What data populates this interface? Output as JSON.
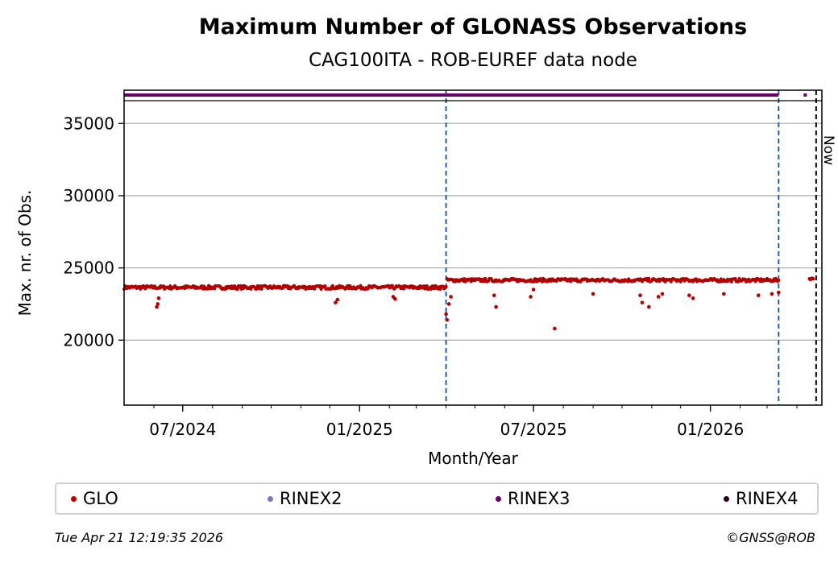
{
  "chart_data": {
    "type": "scatter",
    "title": "Maximum Number of GLONASS Observations",
    "subtitle": "CAG100ITA - ROB-EUREF data node",
    "xlabel": "Month/Year",
    "ylabel": "Max. nr. of Obs.",
    "xlim": [
      "2024-05-01",
      "2026-04-27"
    ],
    "ylim": [
      15500,
      37300
    ],
    "x_ticks": [
      "2024-07-01",
      "2025-01-01",
      "2025-07-01",
      "2026-01-01"
    ],
    "x_tick_labels": [
      "07/2024",
      "01/2025",
      "07/2025",
      "01/2026"
    ],
    "y_ticks": [
      20000,
      25000,
      30000,
      35000
    ],
    "y_tick_labels": [
      "20000",
      "25000",
      "30000",
      "35000"
    ],
    "grid": "horizontal",
    "vlines": [
      {
        "date": "2025-04-01",
        "style": "dashed",
        "color": "#1f5fb0"
      },
      {
        "date": "2026-03-13",
        "style": "dashed",
        "color": "#1f5fb0"
      },
      {
        "date": "2026-04-21",
        "style": "dashed",
        "color": "#000000",
        "label": "Now"
      }
    ],
    "rinex_band": [
      {
        "series": "RINEX3",
        "start": "2024-05-01",
        "end": "2026-03-13"
      },
      {
        "series": "RINEX3",
        "start": "2026-04-08",
        "end": "2026-04-09"
      }
    ],
    "series": [
      {
        "name": "GLO",
        "color": "#b30000",
        "segments": [
          {
            "start": "2024-05-01",
            "end": "2025-04-01",
            "base": 23650,
            "noise": 120
          },
          {
            "start": "2025-04-02",
            "end": "2026-03-13",
            "base": 24150,
            "noise": 110
          },
          {
            "start": "2026-04-14",
            "end": "2026-04-18",
            "base": 24250,
            "noise": 60
          }
        ],
        "points": [
          {
            "x": "2024-06-04",
            "y": 22300
          },
          {
            "x": "2024-06-05",
            "y": 22500
          },
          {
            "x": "2024-06-06",
            "y": 22900
          },
          {
            "x": "2024-12-07",
            "y": 22600
          },
          {
            "x": "2024-12-09",
            "y": 22800
          },
          {
            "x": "2025-02-05",
            "y": 23000
          },
          {
            "x": "2025-02-07",
            "y": 22850
          },
          {
            "x": "2025-04-01",
            "y": 21800
          },
          {
            "x": "2025-04-02",
            "y": 21400
          },
          {
            "x": "2025-04-04",
            "y": 22500
          },
          {
            "x": "2025-04-06",
            "y": 23000
          },
          {
            "x": "2025-05-21",
            "y": 23100
          },
          {
            "x": "2025-05-23",
            "y": 22300
          },
          {
            "x": "2025-06-28",
            "y": 23000
          },
          {
            "x": "2025-07-01",
            "y": 23500
          },
          {
            "x": "2025-07-23",
            "y": 20800
          },
          {
            "x": "2025-09-01",
            "y": 23200
          },
          {
            "x": "2025-10-20",
            "y": 23100
          },
          {
            "x": "2025-10-22",
            "y": 22600
          },
          {
            "x": "2025-10-29",
            "y": 22300
          },
          {
            "x": "2025-11-08",
            "y": 23000
          },
          {
            "x": "2025-11-12",
            "y": 23200
          },
          {
            "x": "2025-12-10",
            "y": 23100
          },
          {
            "x": "2025-12-14",
            "y": 22900
          },
          {
            "x": "2026-01-15",
            "y": 23200
          },
          {
            "x": "2026-02-20",
            "y": 23100
          },
          {
            "x": "2026-03-06",
            "y": 23200
          },
          {
            "x": "2026-03-13",
            "y": 23300
          }
        ]
      },
      {
        "name": "RINEX2",
        "color": "#7a7ac0"
      },
      {
        "name": "RINEX3",
        "color": "#6a006a"
      },
      {
        "name": "RINEX4",
        "color": "#2a0018"
      }
    ]
  },
  "legend": {
    "items": [
      {
        "label": "GLO",
        "color": "#b30000"
      },
      {
        "label": "RINEX2",
        "color": "#7a7ac0"
      },
      {
        "label": "RINEX3",
        "color": "#6a006a"
      },
      {
        "label": "RINEX4",
        "color": "#2a0018"
      }
    ]
  },
  "footer": {
    "timestamp": "Tue Apr 21 12:19:35 2026",
    "credit": "©GNSS@ROB"
  }
}
